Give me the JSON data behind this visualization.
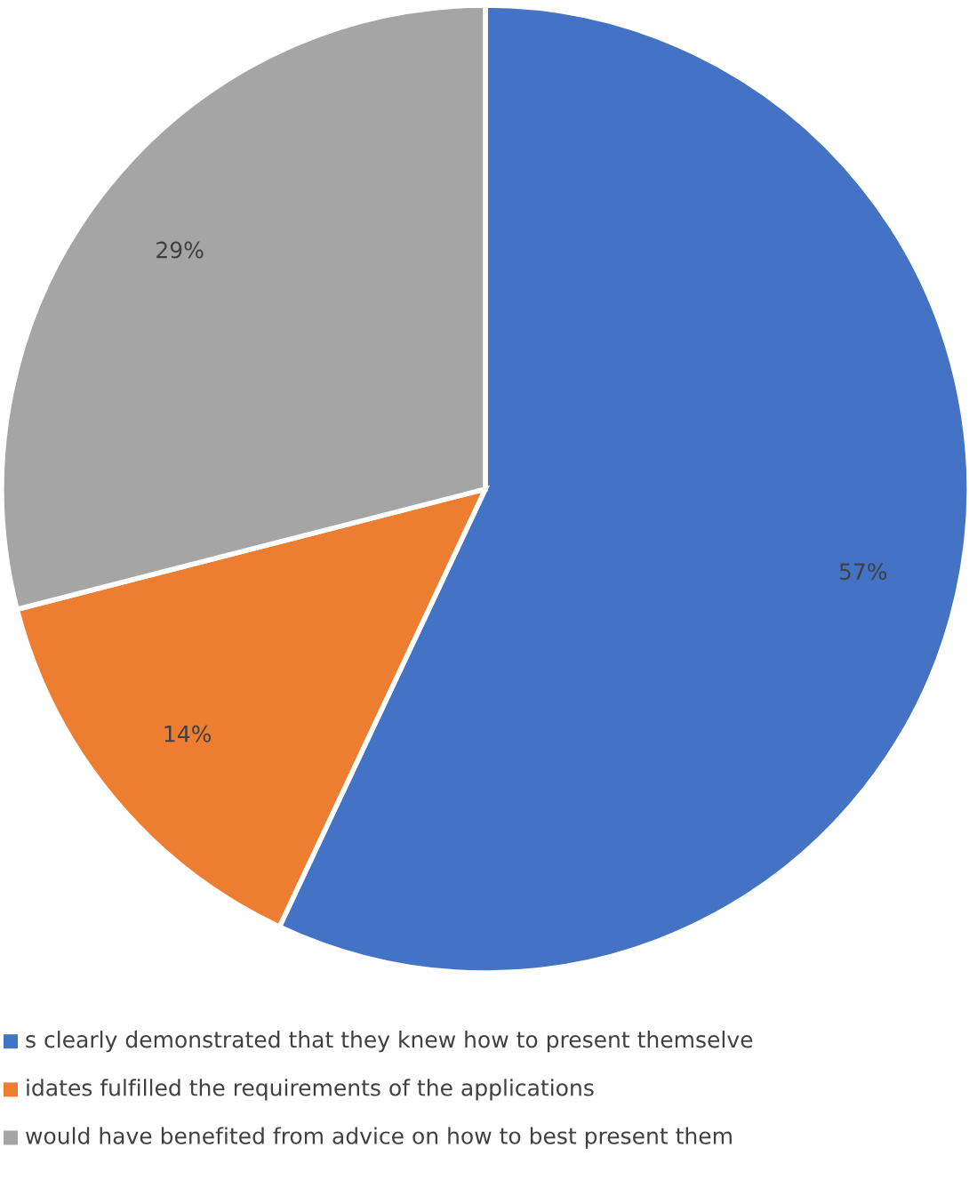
{
  "chart_data": {
    "type": "pie",
    "categories": [
      "s clearly demonstrated that they knew how to present themselve",
      "idates fulfilled the requirements of the applications",
      "would have benefited from advice on how to best present them"
    ],
    "values": [
      57,
      14,
      29
    ],
    "colors": [
      "#4472c4",
      "#ed7d31",
      "#a5a5a5"
    ],
    "value_labels": [
      "57%",
      "14%",
      "29%"
    ],
    "legend": "bottom"
  }
}
